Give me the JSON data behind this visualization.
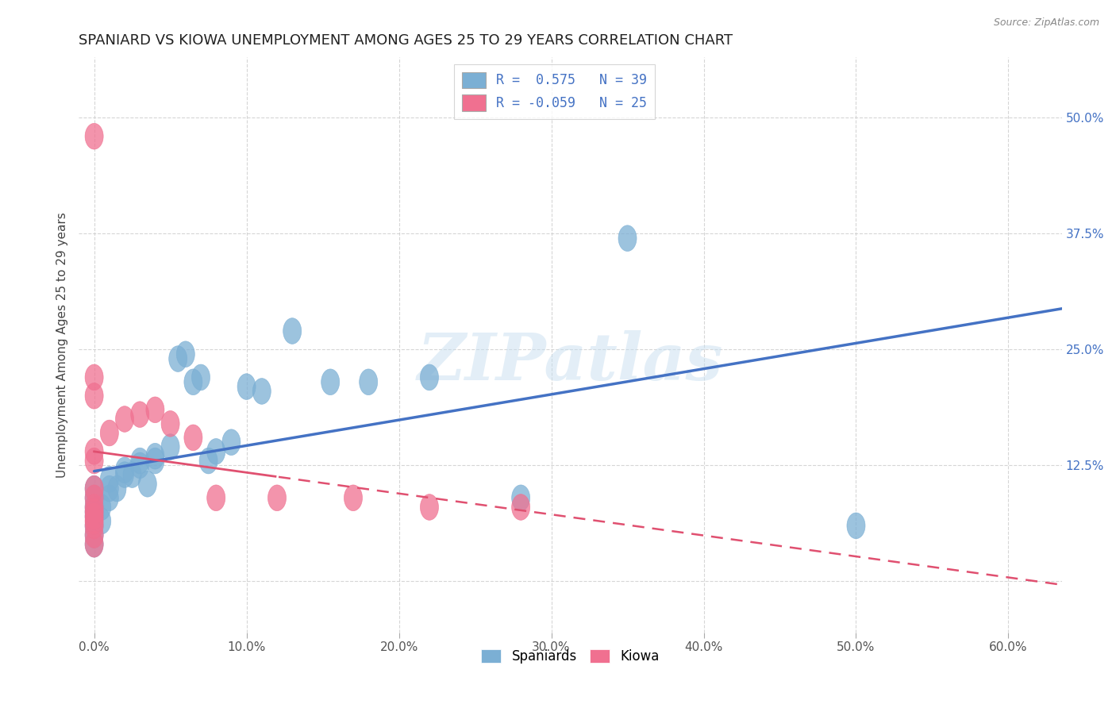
{
  "title": "SPANIARD VS KIOWA UNEMPLOYMENT AMONG AGES 25 TO 29 YEARS CORRELATION CHART",
  "source": "Source: ZipAtlas.com",
  "ylabel": "Unemployment Among Ages 25 to 29 years",
  "x_ticks": [
    0.0,
    0.1,
    0.2,
    0.3,
    0.4,
    0.5,
    0.6
  ],
  "x_tick_labels": [
    "0.0%",
    "10.0%",
    "20.0%",
    "30.0%",
    "40.0%",
    "50.0%",
    "60.0%"
  ],
  "y_ticks": [
    0.0,
    0.125,
    0.25,
    0.375,
    0.5
  ],
  "y_tick_labels": [
    "",
    "12.5%",
    "25.0%",
    "37.5%",
    "50.0%"
  ],
  "xlim": [
    -0.01,
    0.635
  ],
  "ylim": [
    -0.055,
    0.565
  ],
  "spaniards_color": "#7bafd4",
  "kiowa_color": "#f07090",
  "spaniards_points": [
    [
      0.0,
      0.04
    ],
    [
      0.0,
      0.05
    ],
    [
      0.0,
      0.06
    ],
    [
      0.0,
      0.07
    ],
    [
      0.0,
      0.075
    ],
    [
      0.0,
      0.08
    ],
    [
      0.0,
      0.09
    ],
    [
      0.0,
      0.1
    ],
    [
      0.005,
      0.065
    ],
    [
      0.005,
      0.08
    ],
    [
      0.01,
      0.09
    ],
    [
      0.01,
      0.1
    ],
    [
      0.01,
      0.11
    ],
    [
      0.015,
      0.1
    ],
    [
      0.02,
      0.115
    ],
    [
      0.02,
      0.12
    ],
    [
      0.025,
      0.115
    ],
    [
      0.03,
      0.125
    ],
    [
      0.03,
      0.13
    ],
    [
      0.035,
      0.105
    ],
    [
      0.04,
      0.13
    ],
    [
      0.04,
      0.135
    ],
    [
      0.05,
      0.145
    ],
    [
      0.055,
      0.24
    ],
    [
      0.06,
      0.245
    ],
    [
      0.065,
      0.215
    ],
    [
      0.07,
      0.22
    ],
    [
      0.075,
      0.13
    ],
    [
      0.08,
      0.14
    ],
    [
      0.09,
      0.15
    ],
    [
      0.1,
      0.21
    ],
    [
      0.11,
      0.205
    ],
    [
      0.13,
      0.27
    ],
    [
      0.155,
      0.215
    ],
    [
      0.18,
      0.215
    ],
    [
      0.22,
      0.22
    ],
    [
      0.28,
      0.09
    ],
    [
      0.35,
      0.37
    ],
    [
      0.5,
      0.06
    ]
  ],
  "kiowa_points": [
    [
      0.0,
      0.04
    ],
    [
      0.0,
      0.05
    ],
    [
      0.0,
      0.06
    ],
    [
      0.0,
      0.065
    ],
    [
      0.0,
      0.07
    ],
    [
      0.0,
      0.075
    ],
    [
      0.0,
      0.08
    ],
    [
      0.0,
      0.09
    ],
    [
      0.0,
      0.1
    ],
    [
      0.0,
      0.13
    ],
    [
      0.0,
      0.14
    ],
    [
      0.0,
      0.2
    ],
    [
      0.0,
      0.22
    ],
    [
      0.0,
      0.48
    ],
    [
      0.01,
      0.16
    ],
    [
      0.02,
      0.175
    ],
    [
      0.03,
      0.18
    ],
    [
      0.04,
      0.185
    ],
    [
      0.05,
      0.17
    ],
    [
      0.065,
      0.155
    ],
    [
      0.08,
      0.09
    ],
    [
      0.12,
      0.09
    ],
    [
      0.17,
      0.09
    ],
    [
      0.22,
      0.08
    ],
    [
      0.28,
      0.08
    ]
  ],
  "legend_label_sp": "R =  0.575   N = 39",
  "legend_label_ki": "R = -0.059   N = 25",
  "legend_text_color": "#4472c4",
  "watermark_text": "ZIPatlas",
  "background_color": "#ffffff",
  "grid_color": "#cccccc",
  "title_fontsize": 13,
  "axis_label_fontsize": 11,
  "tick_fontsize": 11,
  "legend_fontsize": 12
}
